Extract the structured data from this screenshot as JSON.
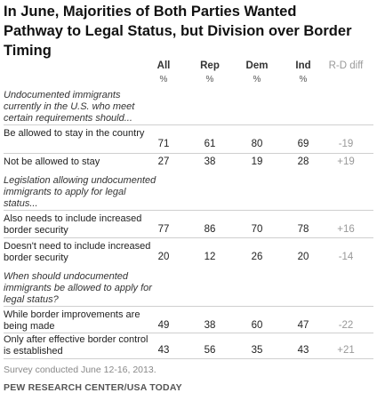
{
  "chart_data": {
    "type": "table",
    "title": "In June, Majorities of Both Parties Wanted Pathway to Legal Status, but Division over Border Timing",
    "columns": [
      "All",
      "Rep",
      "Dem",
      "Ind",
      "R-D diff"
    ],
    "unit": "%",
    "groups": [
      {
        "question": "Undocumented immigrants currently in the U.S. who meet certain requirements should...",
        "rows": [
          {
            "label": "Be allowed to stay in the country",
            "values": [
              "71",
              "61",
              "80",
              "69",
              "-19"
            ]
          },
          {
            "label": "Not be allowed to stay",
            "values": [
              "27",
              "38",
              "19",
              "28",
              "+19"
            ]
          }
        ]
      },
      {
        "question": "Legislation allowing undocumented immigrants to apply for legal status...",
        "rows": [
          {
            "label": "Also needs to include increased border security",
            "values": [
              "77",
              "86",
              "70",
              "78",
              "+16"
            ]
          },
          {
            "label": "Doesn't need to include increased border security",
            "values": [
              "20",
              "12",
              "26",
              "20",
              "-14"
            ]
          }
        ]
      },
      {
        "question": "When should undocumented immigrants be allowed to apply for legal status?",
        "rows": [
          {
            "label": "While border improvements are being made",
            "values": [
              "49",
              "38",
              "60",
              "47",
              "-22"
            ]
          },
          {
            "label": "Only after effective border control is established",
            "values": [
              "43",
              "56",
              "35",
              "43",
              "+21"
            ]
          }
        ]
      }
    ],
    "note": "Survey conducted June 12-16, 2013.",
    "source": "PEW RESEARCH CENTER/USA TODAY"
  }
}
